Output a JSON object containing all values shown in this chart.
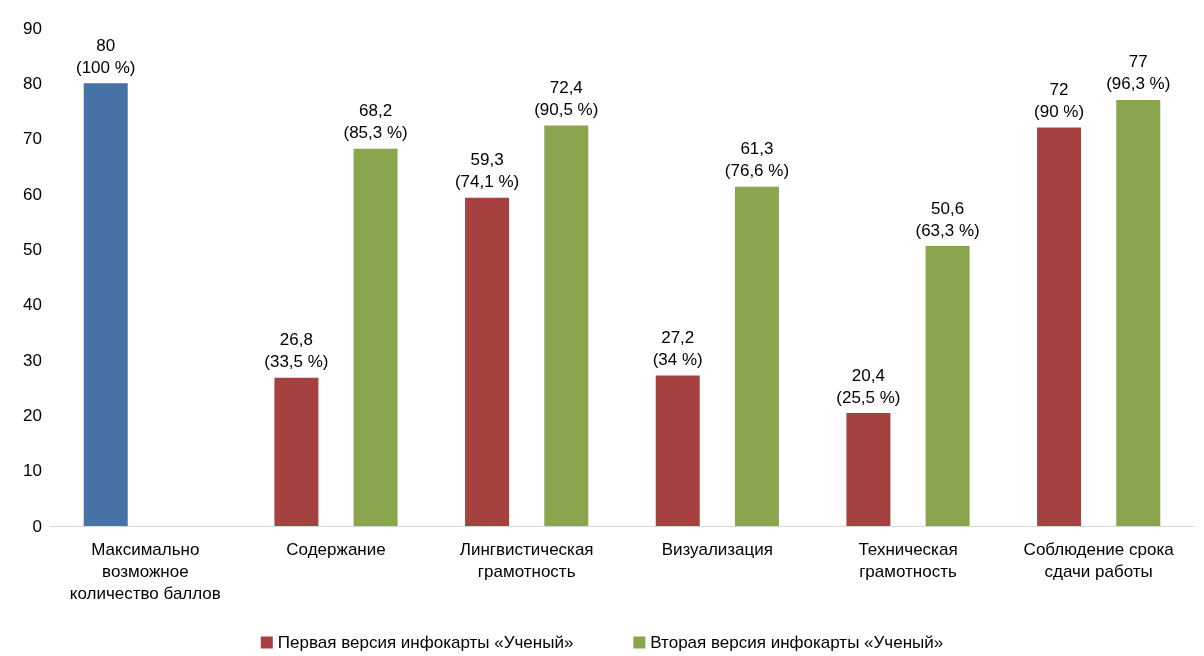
{
  "chart_data": {
    "type": "bar",
    "categories": [
      "Максимально возможное количество баллов",
      "Содержание",
      "Лингвистическая грамотность",
      "Визуализация",
      "Техническая грамотность",
      "Соблюдение срока сдачи работы"
    ],
    "series": [
      {
        "name": "Первая версия инфокарты «Ученый»",
        "color": "#a5423f",
        "colors": [
          "#4772a6",
          "#a5423f",
          "#a5423f",
          "#a5423f",
          "#a5423f",
          "#a5423f"
        ],
        "values": [
          80,
          26.8,
          59.3,
          27.2,
          20.4,
          72
        ],
        "value_labels": [
          "80\n(100 %)",
          "26,8\n(33,5 %)",
          "59,3\n(74,1 %)",
          "27,2\n(34 %)",
          "20,4\n(25,5 %)",
          "72\n(90 %)"
        ]
      },
      {
        "name": "Вторая версия инфокарты «Ученый»",
        "color": "#89a54e",
        "values": [
          null,
          68.2,
          72.4,
          61.3,
          50.6,
          77
        ],
        "value_labels": [
          null,
          "68,2\n(85,3 %)",
          "72,4\n(90,5 %)",
          "61,3\n(76,6 %)",
          "50,6\n(63,3 %)",
          "77\n(96,3 %)"
        ]
      }
    ],
    "ylim": [
      0,
      90
    ],
    "yticks": [
      0,
      10,
      20,
      30,
      40,
      50,
      60,
      70,
      80,
      90
    ],
    "grid": false,
    "legend": "bottom"
  }
}
